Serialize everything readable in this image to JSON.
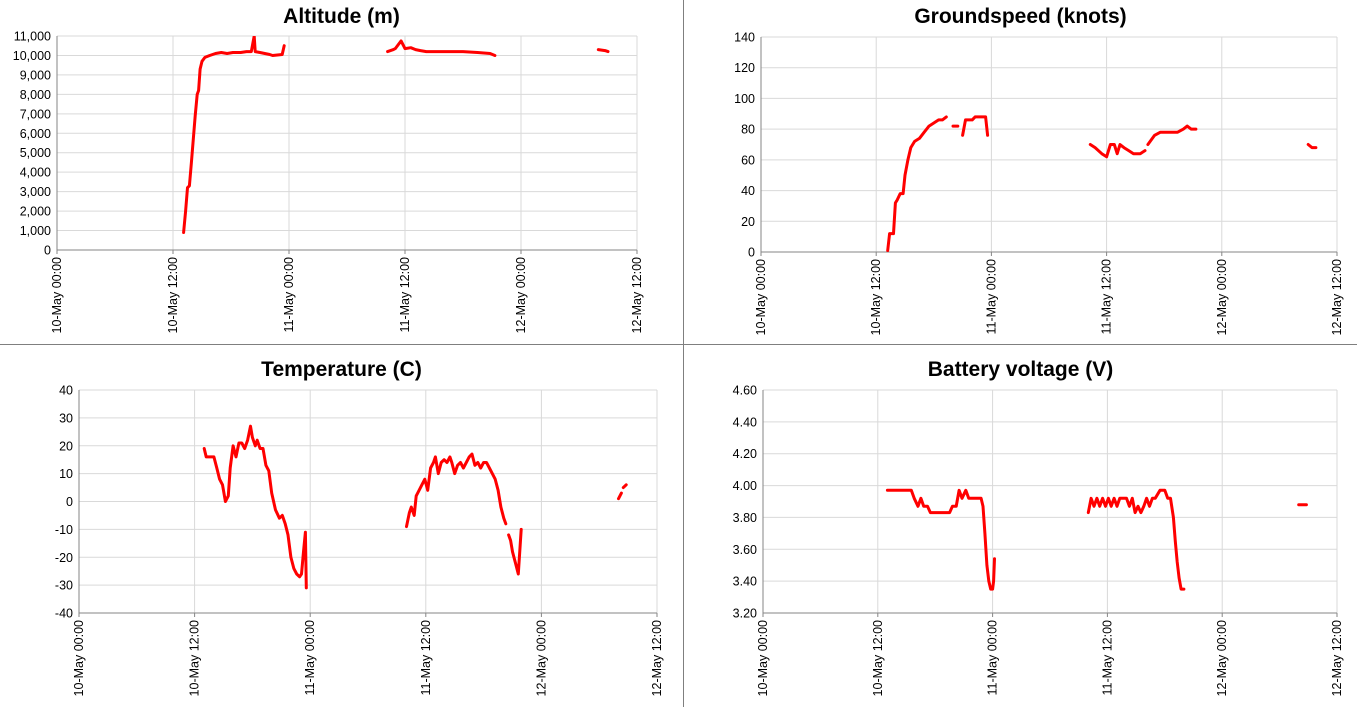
{
  "chart_data": [
    {
      "type": "line",
      "title": "Altitude (m)",
      "xlabel": "",
      "ylabel": "",
      "x_ticks": [
        "10-May 00:00",
        "10-May 12:00",
        "11-May 00:00",
        "11-May 12:00",
        "12-May 00:00",
        "12-May 12:00"
      ],
      "y_ticks": [
        "0",
        "1,000",
        "2,000",
        "3,000",
        "4,000",
        "5,000",
        "6,000",
        "7,000",
        "8,000",
        "9,000",
        "10,000",
        "11,000"
      ],
      "xlim_hours": [
        0,
        60
      ],
      "ylim": [
        0,
        11000
      ],
      "grid": true,
      "series_color": "#ff0000",
      "segments": [
        [
          [
            13.1,
            900
          ],
          [
            13.3,
            2000
          ],
          [
            13.5,
            3200
          ],
          [
            13.7,
            3300
          ],
          [
            13.9,
            4500
          ],
          [
            14.1,
            5700
          ],
          [
            14.3,
            6900
          ],
          [
            14.5,
            8000
          ],
          [
            14.65,
            8200
          ],
          [
            14.8,
            9300
          ],
          [
            15.0,
            9700
          ],
          [
            15.3,
            9900
          ],
          [
            15.8,
            10000
          ],
          [
            16.4,
            10100
          ],
          [
            17.0,
            10150
          ],
          [
            17.6,
            10100
          ],
          [
            18.2,
            10150
          ],
          [
            19.0,
            10150
          ],
          [
            19.6,
            10200
          ],
          [
            20.1,
            10200
          ],
          [
            20.4,
            11000
          ],
          [
            20.5,
            10200
          ],
          [
            21.0,
            10150
          ],
          [
            21.5,
            10100
          ],
          [
            22.0,
            10050
          ],
          [
            22.3,
            10000
          ],
          [
            23.3,
            10050
          ],
          [
            23.5,
            10500
          ]
        ],
        [
          [
            34.2,
            10200
          ],
          [
            34.8,
            10300
          ],
          [
            35.0,
            10350
          ],
          [
            35.6,
            10750
          ],
          [
            36.0,
            10350
          ],
          [
            36.6,
            10400
          ],
          [
            37.1,
            10300
          ],
          [
            37.6,
            10250
          ],
          [
            38.2,
            10200
          ],
          [
            39.0,
            10200
          ],
          [
            40.0,
            10200
          ],
          [
            41.0,
            10200
          ],
          [
            42.0,
            10200
          ],
          [
            43.5,
            10150
          ],
          [
            44.8,
            10100
          ],
          [
            45.3,
            10000
          ]
        ],
        [
          [
            56.0,
            10300
          ],
          [
            56.7,
            10250
          ],
          [
            57.0,
            10200
          ]
        ]
      ]
    },
    {
      "type": "line",
      "title": "Groundspeed (knots)",
      "xlabel": "",
      "ylabel": "",
      "x_ticks": [
        "10-May 00:00",
        "10-May 12:00",
        "11-May 00:00",
        "11-May 12:00",
        "12-May 00:00",
        "12-May 12:00"
      ],
      "y_ticks": [
        "0",
        "20",
        "40",
        "60",
        "80",
        "100",
        "120",
        "140"
      ],
      "xlim_hours": [
        0,
        60
      ],
      "ylim": [
        0,
        140
      ],
      "grid": true,
      "series_color": "#ff0000",
      "segments": [
        [
          [
            13.2,
            1
          ],
          [
            13.4,
            12
          ],
          [
            13.8,
            12
          ],
          [
            14.0,
            32
          ],
          [
            14.2,
            34
          ],
          [
            14.5,
            38
          ],
          [
            14.8,
            38
          ],
          [
            15.0,
            50
          ],
          [
            15.3,
            60
          ],
          [
            15.6,
            68
          ],
          [
            16.0,
            72
          ],
          [
            16.5,
            74
          ],
          [
            17.0,
            78
          ],
          [
            17.5,
            82
          ],
          [
            18.0,
            84
          ],
          [
            18.5,
            86
          ],
          [
            18.9,
            86
          ],
          [
            19.3,
            88
          ]
        ],
        [
          [
            20.0,
            82
          ],
          [
            20.5,
            82
          ]
        ],
        [
          [
            21.0,
            76
          ],
          [
            21.3,
            86
          ],
          [
            22.0,
            86
          ],
          [
            22.3,
            88
          ],
          [
            23.0,
            88
          ],
          [
            23.4,
            88
          ],
          [
            23.6,
            76
          ]
        ],
        [
          [
            34.3,
            70
          ],
          [
            34.8,
            68
          ],
          [
            35.5,
            64
          ],
          [
            36.0,
            62
          ],
          [
            36.4,
            70
          ],
          [
            36.8,
            70
          ],
          [
            37.1,
            64
          ],
          [
            37.4,
            70
          ],
          [
            37.8,
            68
          ],
          [
            38.3,
            66
          ],
          [
            38.8,
            64
          ],
          [
            39.5,
            64
          ],
          [
            40.0,
            66
          ]
        ],
        [
          [
            40.3,
            70
          ],
          [
            41.0,
            76
          ],
          [
            41.6,
            78
          ],
          [
            42.5,
            78
          ],
          [
            43.0,
            78
          ],
          [
            43.4,
            78
          ],
          [
            44.0,
            80
          ],
          [
            44.4,
            82
          ],
          [
            44.8,
            80
          ],
          [
            45.3,
            80
          ]
        ],
        [
          [
            57.0,
            70
          ],
          [
            57.4,
            68
          ],
          [
            57.8,
            68
          ]
        ]
      ]
    },
    {
      "type": "line",
      "title": "Temperature (C)",
      "xlabel": "",
      "ylabel": "",
      "x_ticks": [
        "10-May 00:00",
        "10-May 12:00",
        "11-May 00:00",
        "11-May 12:00",
        "12-May 00:00",
        "12-May 12:00"
      ],
      "y_ticks": [
        "-40",
        "-30",
        "-20",
        "-10",
        "0",
        "10",
        "20",
        "30",
        "40"
      ],
      "xlim_hours": [
        0,
        60
      ],
      "ylim": [
        -40,
        40
      ],
      "grid": true,
      "series_color": "#ff0000",
      "segments": [
        [
          [
            13.0,
            19
          ],
          [
            13.2,
            16
          ],
          [
            14.0,
            16
          ],
          [
            14.3,
            12
          ],
          [
            14.6,
            8
          ],
          [
            14.9,
            6
          ],
          [
            15.2,
            0
          ],
          [
            15.5,
            2
          ],
          [
            15.7,
            12
          ],
          [
            16.0,
            20
          ],
          [
            16.3,
            16
          ],
          [
            16.6,
            21
          ],
          [
            16.9,
            21
          ],
          [
            17.2,
            19
          ],
          [
            17.5,
            22
          ],
          [
            17.8,
            27
          ],
          [
            18.0,
            23
          ],
          [
            18.3,
            20
          ],
          [
            18.5,
            22
          ],
          [
            18.8,
            19
          ],
          [
            19.1,
            19
          ],
          [
            19.4,
            13
          ],
          [
            19.7,
            11
          ],
          [
            20.0,
            3
          ],
          [
            20.4,
            -3
          ],
          [
            20.8,
            -6
          ],
          [
            21.1,
            -5
          ],
          [
            21.4,
            -8
          ],
          [
            21.7,
            -12
          ],
          [
            22.0,
            -20
          ],
          [
            22.3,
            -24
          ],
          [
            22.6,
            -26
          ],
          [
            22.9,
            -27
          ],
          [
            23.1,
            -26
          ],
          [
            23.3,
            -18
          ],
          [
            23.5,
            -11
          ],
          [
            23.6,
            -31
          ]
        ],
        [
          [
            34.0,
            -9
          ],
          [
            34.3,
            -4
          ],
          [
            34.5,
            -2
          ],
          [
            34.8,
            -5
          ],
          [
            35.0,
            2
          ],
          [
            35.3,
            4
          ],
          [
            35.6,
            6
          ],
          [
            35.9,
            8
          ],
          [
            36.2,
            4
          ],
          [
            36.5,
            12
          ],
          [
            36.8,
            14
          ],
          [
            37.0,
            16
          ],
          [
            37.3,
            10
          ],
          [
            37.6,
            14
          ],
          [
            37.9,
            15
          ],
          [
            38.2,
            14
          ],
          [
            38.5,
            16
          ],
          [
            38.7,
            14
          ],
          [
            39.0,
            10
          ],
          [
            39.3,
            13
          ],
          [
            39.6,
            14
          ],
          [
            39.9,
            12
          ],
          [
            40.2,
            14
          ],
          [
            40.5,
            16
          ],
          [
            40.8,
            17
          ],
          [
            41.1,
            13
          ],
          [
            41.4,
            14
          ],
          [
            41.7,
            12
          ],
          [
            42.0,
            14
          ],
          [
            42.3,
            14
          ],
          [
            42.6,
            12
          ],
          [
            42.9,
            10
          ],
          [
            43.2,
            8
          ],
          [
            43.5,
            4
          ],
          [
            43.8,
            -2
          ],
          [
            44.1,
            -6
          ],
          [
            44.3,
            -8
          ]
        ],
        [
          [
            44.6,
            -12
          ],
          [
            44.8,
            -14
          ],
          [
            45.0,
            -18
          ],
          [
            45.3,
            -22
          ],
          [
            45.6,
            -26
          ],
          [
            45.9,
            -10
          ]
        ],
        [
          [
            56.0,
            1
          ],
          [
            56.3,
            3
          ]
        ],
        [
          [
            56.5,
            5
          ],
          [
            56.8,
            6
          ]
        ]
      ]
    },
    {
      "type": "line",
      "title": "Battery voltage (V)",
      "xlabel": "",
      "ylabel": "",
      "x_ticks": [
        "10-May 00:00",
        "10-May 12:00",
        "11-May 00:00",
        "11-May 12:00",
        "12-May 00:00",
        "12-May 12:00"
      ],
      "y_ticks": [
        "3.20",
        "3.40",
        "3.60",
        "3.80",
        "4.00",
        "4.20",
        "4.40",
        "4.60"
      ],
      "xlim_hours": [
        0,
        60
      ],
      "ylim": [
        3.2,
        4.6
      ],
      "grid": true,
      "series_color": "#ff0000",
      "segments": [
        [
          [
            13.0,
            3.97
          ],
          [
            14.5,
            3.97
          ],
          [
            15.5,
            3.97
          ],
          [
            15.8,
            3.92
          ],
          [
            16.2,
            3.87
          ],
          [
            16.5,
            3.92
          ],
          [
            16.8,
            3.87
          ],
          [
            17.2,
            3.87
          ],
          [
            17.5,
            3.83
          ],
          [
            18.0,
            3.83
          ],
          [
            19.0,
            3.83
          ],
          [
            19.5,
            3.83
          ],
          [
            19.8,
            3.87
          ],
          [
            20.2,
            3.87
          ],
          [
            20.5,
            3.97
          ],
          [
            20.8,
            3.92
          ],
          [
            21.2,
            3.97
          ],
          [
            21.5,
            3.92
          ],
          [
            22.5,
            3.92
          ],
          [
            22.8,
            3.92
          ],
          [
            23.0,
            3.87
          ],
          [
            23.2,
            3.7
          ],
          [
            23.4,
            3.5
          ],
          [
            23.6,
            3.4
          ],
          [
            23.8,
            3.35
          ],
          [
            24.0,
            3.35
          ],
          [
            24.1,
            3.4
          ],
          [
            24.2,
            3.54
          ]
        ],
        [
          [
            34.0,
            3.83
          ],
          [
            34.3,
            3.92
          ],
          [
            34.6,
            3.87
          ],
          [
            34.9,
            3.92
          ],
          [
            35.2,
            3.87
          ],
          [
            35.5,
            3.92
          ],
          [
            35.8,
            3.87
          ],
          [
            36.1,
            3.92
          ],
          [
            36.4,
            3.87
          ],
          [
            36.7,
            3.92
          ],
          [
            37.0,
            3.87
          ],
          [
            37.3,
            3.92
          ],
          [
            38.0,
            3.92
          ],
          [
            38.3,
            3.87
          ],
          [
            38.6,
            3.92
          ],
          [
            38.9,
            3.83
          ],
          [
            39.2,
            3.87
          ],
          [
            39.5,
            3.83
          ],
          [
            39.8,
            3.87
          ],
          [
            40.1,
            3.92
          ],
          [
            40.4,
            3.87
          ],
          [
            40.7,
            3.92
          ],
          [
            41.0,
            3.92
          ],
          [
            41.5,
            3.97
          ],
          [
            42.0,
            3.97
          ],
          [
            42.3,
            3.92
          ],
          [
            42.6,
            3.92
          ],
          [
            42.9,
            3.8
          ],
          [
            43.1,
            3.65
          ],
          [
            43.3,
            3.52
          ],
          [
            43.5,
            3.42
          ],
          [
            43.7,
            3.35
          ],
          [
            44.0,
            3.35
          ]
        ],
        [
          [
            56.0,
            3.88
          ],
          [
            56.8,
            3.88
          ]
        ]
      ]
    }
  ]
}
